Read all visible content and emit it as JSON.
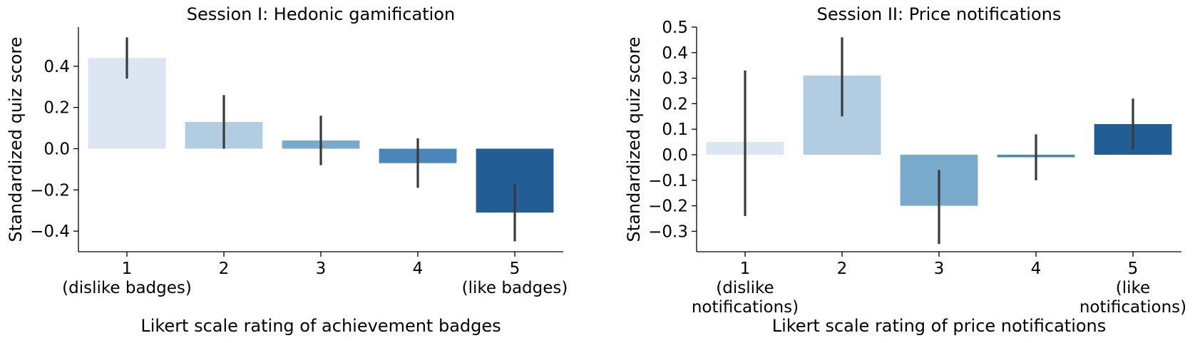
{
  "chart_data": [
    {
      "type": "bar",
      "title": "Session I: Hedonic gamification",
      "xlabel": "Likert scale rating of achievement badges",
      "ylabel": "Standardized quiz score",
      "categories": [
        "1",
        "2",
        "3",
        "4",
        "5"
      ],
      "category_sublabels": [
        [
          "(dislike badges)"
        ],
        [],
        [],
        [],
        [
          "(like badges)"
        ]
      ],
      "values": [
        0.44,
        0.13,
        0.04,
        -0.07,
        -0.31
      ],
      "error_low": [
        0.34,
        0.0,
        -0.08,
        -0.19,
        -0.45
      ],
      "error_high": [
        0.54,
        0.26,
        0.16,
        0.05,
        -0.17
      ],
      "colors": [
        "#dbe6f2",
        "#b2cde1",
        "#7aaacb",
        "#4a88ba",
        "#225e94"
      ],
      "ylim": [
        -0.5,
        0.59
      ],
      "yticks": [
        -0.4,
        -0.2,
        0.0,
        0.2,
        0.4
      ],
      "ytick_labels": [
        "−0.4",
        "−0.2",
        "0.0",
        "0.2",
        "0.4"
      ],
      "grid": false
    },
    {
      "type": "bar",
      "title": "Session II: Price notifications",
      "xlabel": "Likert scale rating of price notifications",
      "ylabel": "Standardized quiz score",
      "categories": [
        "1",
        "2",
        "3",
        "4",
        "5"
      ],
      "category_sublabels": [
        [
          "(dislike",
          "notifications)"
        ],
        [],
        [],
        [],
        [
          "(like",
          "notifications)"
        ]
      ],
      "values": [
        0.05,
        0.31,
        -0.2,
        -0.01,
        0.12
      ],
      "error_low": [
        -0.24,
        0.15,
        -0.35,
        -0.1,
        0.02
      ],
      "error_high": [
        0.33,
        0.46,
        -0.06,
        0.08,
        0.22
      ],
      "colors": [
        "#dbe6f2",
        "#b2cde1",
        "#7aaacb",
        "#4a88ba",
        "#225e94"
      ],
      "ylim": [
        -0.38,
        0.5
      ],
      "yticks": [
        -0.3,
        -0.2,
        -0.1,
        0.0,
        0.1,
        0.2,
        0.3,
        0.4,
        0.5
      ],
      "ytick_labels": [
        "−0.3",
        "−0.2",
        "−0.1",
        "0.0",
        "0.1",
        "0.2",
        "0.3",
        "0.4",
        "0.5"
      ],
      "grid": false
    }
  ]
}
